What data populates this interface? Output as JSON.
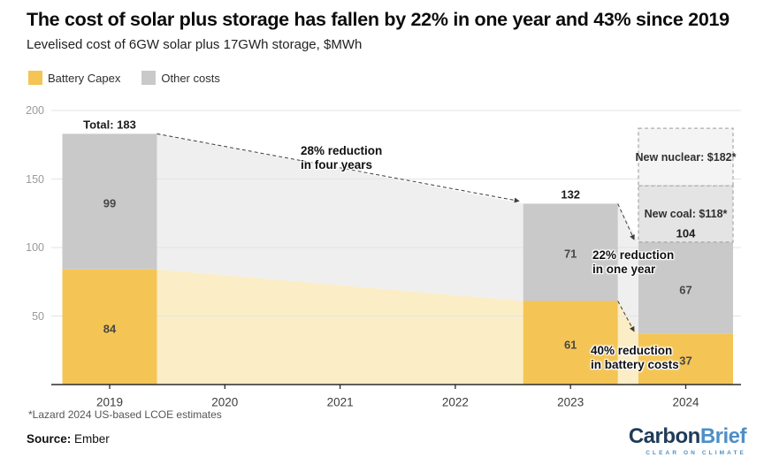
{
  "header": {
    "title": "The cost of solar plus storage has fallen by 22% in one year and 43% since 2019",
    "subtitle": "Levelised cost of 6GW solar plus 17GWh storage, $MWh"
  },
  "legend": [
    {
      "label": "Battery Capex",
      "color": "#F4C555"
    },
    {
      "label": "Other costs",
      "color": "#C9C9C9"
    }
  ],
  "chart_data": {
    "type": "bar",
    "variant": "stacked-bars-with-faded-area-connectors",
    "title": "Levelised cost of 6GW solar plus 17GWh storage, $MWh",
    "unit": "$/MWh",
    "x_years": [
      "2019",
      "2020",
      "2021",
      "2022",
      "2023",
      "2024"
    ],
    "y_ticks": [
      50,
      100,
      150,
      200
    ],
    "ylim": [
      0,
      200
    ],
    "grid": true,
    "series_names": [
      "Battery Capex",
      "Other costs"
    ],
    "bars": [
      {
        "year": "2019",
        "battery_capex": 84,
        "other_costs": 99,
        "total": 183,
        "total_label": "Total: 183"
      },
      {
        "year": "2023",
        "battery_capex": 61,
        "other_costs": 71,
        "total": 132,
        "total_label": "132"
      },
      {
        "year": "2024",
        "battery_capex": 37,
        "other_costs": 67,
        "total": 104,
        "total_label": "104"
      }
    ],
    "annotations": [
      {
        "lines": [
          "28% reduction",
          "in four years"
        ]
      },
      {
        "lines": [
          "22% reduction",
          "in one year"
        ]
      },
      {
        "lines": [
          "40% reduction",
          "in battery costs"
        ]
      }
    ],
    "benchmarks": [
      {
        "label": "New nuclear: $182*",
        "value": 182
      },
      {
        "label": "New coal: $118*",
        "value": 118
      }
    ]
  },
  "theme": {
    "battery": "#F4C555",
    "battery_faded": "#FBEDC6",
    "other": "#C9C9C9",
    "other_faded": "#EFEFEF",
    "grid": "#E3E3E3",
    "axis": "#2B2B2B",
    "arrow": "#3D3D3D",
    "benchmark_nuclear_fill": "#F4F4F4",
    "benchmark_coal_fill": "#E4E4E4",
    "benchmark_border": "#ADADAD",
    "logo_dark_blue": "#1F3B57",
    "logo_light_blue": "#4E8FC7"
  },
  "footnote": "*Lazard 2024 US-based LCOE estimates",
  "source": {
    "label": "Source:",
    "value": "Ember"
  },
  "logo": {
    "part1": "Carbon",
    "part2": "Brief",
    "tagline": "CLEAR ON CLIMATE"
  }
}
